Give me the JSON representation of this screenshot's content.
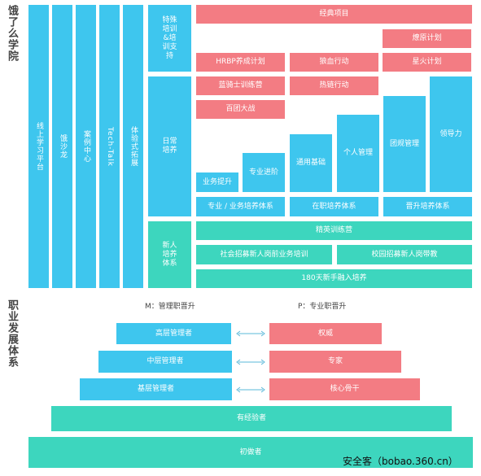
{
  "colors": {
    "blue": "#3ec6ee",
    "teal": "#3dd6be",
    "red": "#f37c83"
  },
  "titles": {
    "training": "饿了么学院",
    "career": "职业发展体系"
  },
  "pillars": [
    "线上学习平台",
    "饿沙龙",
    "案例中心",
    "Tech-Talk",
    "体验式拓展"
  ],
  "categories": {
    "special": "特殊培训&培训支持",
    "daily": "日常培养",
    "new": "新人培养体系"
  },
  "special": {
    "classic": "经典项目",
    "torch": "燎原计划",
    "star": "星火计划",
    "hrbp": "HRBP养成计划",
    "wolf": "狼血行动",
    "knight": "蓝骑士训练营",
    "hotchain": "热链行动",
    "hundred": "百团大战"
  },
  "daily": {
    "bars": [
      "业务提升",
      "专业进阶",
      "通用基础",
      "个人管理",
      "团规管理",
      "领导力"
    ],
    "groups": [
      "专业 / 业务培养体系",
      "在职培养体系",
      "晋升培养体系"
    ]
  },
  "newhire": {
    "elite": "精英训练营",
    "social": "社会招募新人岗前业务培训",
    "campus": "校园招募新人岗带教",
    "days180": "180天新手融入培养"
  },
  "career": {
    "m_label": "M：管理职晋升",
    "p_label": "P：专业职晋升",
    "m_levels": [
      "高层管理者",
      "中层管理者",
      "基层管理者"
    ],
    "p_levels": [
      "权威",
      "专家",
      "核心骨干"
    ],
    "experienced": "有经验者",
    "beginner": "初做者"
  },
  "watermark": "安全客（bobao.360.cn）"
}
